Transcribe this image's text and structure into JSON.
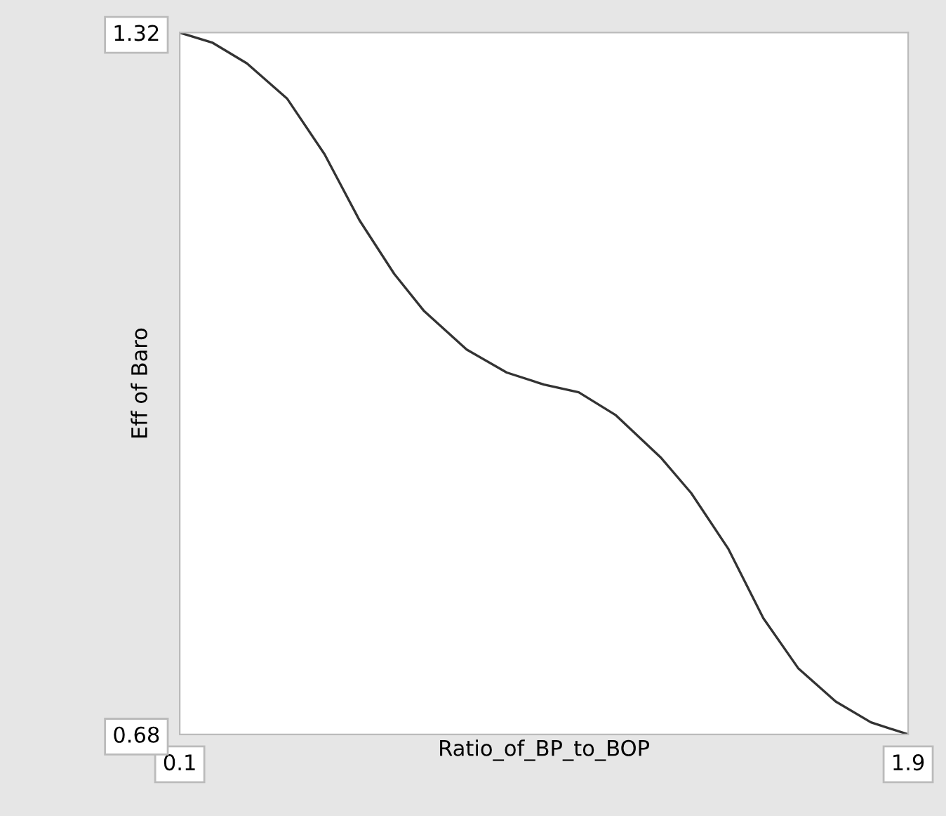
{
  "chart_data": {
    "type": "line",
    "xlabel": "Ratio_of_BP_to_BOP",
    "ylabel": "Eff of Baro",
    "xlim": [
      0.1,
      1.9
    ],
    "ylim": [
      0.68,
      1.32
    ],
    "xticks": [
      0.1,
      1.9
    ],
    "yticks": [
      0.68,
      1.32
    ],
    "grid": false,
    "marker": "none",
    "line_style": "solid",
    "x": [
      0.1,
      0.18,
      0.266,
      0.365,
      0.458,
      0.544,
      0.63,
      0.704,
      0.809,
      0.908,
      1.0,
      1.086,
      1.178,
      1.29,
      1.364,
      1.456,
      1.542,
      1.629,
      1.721,
      1.808,
      1.9
    ],
    "series": [
      {
        "color": "#333333",
        "values": [
          1.32,
          1.311,
          1.292,
          1.26,
          1.209,
          1.149,
          1.1,
          1.066,
          1.031,
          1.01,
          0.999,
          0.992,
          0.971,
          0.932,
          0.9,
          0.849,
          0.786,
          0.74,
          0.71,
          0.691,
          0.68
        ]
      }
    ]
  }
}
